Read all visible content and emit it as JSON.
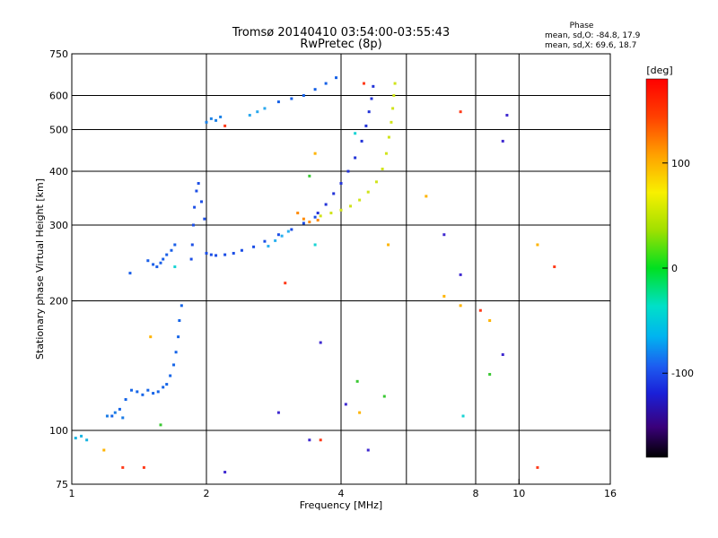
{
  "header": {
    "title_line1": "Tromsø 20140410 03:54:00-03:55:43",
    "title_line2": "RwPretec (8p)"
  },
  "phase_box": {
    "heading": "Phase",
    "line_o": "mean, sd,O: -84.8, 17.9",
    "line_x": "mean, sd,X: 69.6, 18.7"
  },
  "colorbar": {
    "unit": "[deg]",
    "range": [
      -180,
      180
    ],
    "ticks": [
      "100",
      "0",
      "-100"
    ],
    "tick_values": [
      100,
      0,
      -100
    ]
  },
  "chart_data": {
    "type": "scatter",
    "xlabel": "Frequency [MHz]",
    "ylabel": "Stationary phase Virtual Height [km]",
    "x_scale": "log",
    "y_scale": "log",
    "xlim": [
      1,
      16
    ],
    "ylim": [
      75,
      750
    ],
    "x_ticks": [
      "1",
      "2",
      "4",
      "8",
      "10",
      "16"
    ],
    "x_tick_values": [
      1,
      2,
      4,
      8,
      10,
      16
    ],
    "y_ticks": [
      "750",
      "600",
      "500",
      "400",
      "300",
      "200",
      "100",
      "75"
    ],
    "y_tick_values": [
      750,
      600,
      500,
      400,
      300,
      200,
      100,
      75
    ],
    "x_grid": [
      2,
      4,
      5.6,
      8,
      10
    ],
    "y_grid": [
      100,
      200,
      300,
      400,
      500,
      600
    ],
    "grid": true,
    "series": [
      {
        "color": "#1565e8",
        "x": [
          1.23,
          1.28,
          1.32,
          1.36,
          1.4,
          1.44,
          1.48,
          1.52,
          1.56,
          1.6,
          1.63,
          1.66,
          1.69,
          1.71,
          1.73,
          1.74,
          1.76
        ],
        "y": [
          108,
          112,
          118,
          124,
          123,
          121,
          124,
          122,
          123,
          126,
          128,
          134,
          142,
          152,
          165,
          180,
          195
        ]
      },
      {
        "color": "#1a7be6",
        "x": [
          1.2,
          1.25,
          1.3
        ],
        "y": [
          108,
          110,
          107
        ]
      },
      {
        "color": "#17b4e2",
        "x": [
          1.02,
          1.05,
          1.08
        ],
        "y": [
          96,
          97,
          95
        ]
      },
      {
        "color": "#1a5fe8",
        "x": [
          1.35,
          1.48,
          1.52,
          1.55,
          1.58,
          1.6,
          1.63,
          1.67,
          1.7
        ],
        "y": [
          232,
          248,
          243,
          240,
          245,
          250,
          256,
          262,
          270
        ]
      },
      {
        "color": "#1d4fe6",
        "x": [
          1.85,
          1.86,
          1.87,
          1.88,
          1.9,
          1.92,
          1.95,
          1.98
        ],
        "y": [
          250,
          270,
          300,
          330,
          360,
          375,
          340,
          310
        ]
      },
      {
        "color": "#1a4de6",
        "x": [
          2.0,
          2.05,
          2.1,
          2.2,
          2.3,
          2.4,
          2.55,
          2.7,
          2.9,
          3.1,
          3.3,
          3.5
        ],
        "y": [
          258,
          256,
          255,
          256,
          258,
          262,
          267,
          275,
          285,
          293,
          303,
          313
        ]
      },
      {
        "color": "#2ab0f0",
        "x": [
          2.75,
          2.85,
          2.95,
          3.05
        ],
        "y": [
          268,
          276,
          283,
          290
        ]
      },
      {
        "color": "#ff8a00",
        "x": [
          3.2,
          3.3,
          3.4,
          3.55
        ],
        "y": [
          320,
          310,
          305,
          308
        ]
      },
      {
        "color": "#2233d8",
        "x": [
          3.55,
          3.7,
          3.85,
          4.0,
          4.15,
          4.3,
          4.45,
          4.55,
          4.62,
          4.68,
          4.72
        ],
        "y": [
          320,
          335,
          355,
          375,
          400,
          430,
          470,
          510,
          550,
          590,
          630
        ]
      },
      {
        "color": "#d0e41a",
        "x": [
          3.6,
          3.8,
          4.0,
          4.2,
          4.4,
          4.6,
          4.8,
          4.95,
          5.05,
          5.12,
          5.18,
          5.22,
          5.25,
          5.28
        ],
        "y": [
          315,
          320,
          325,
          332,
          343,
          358,
          378,
          405,
          440,
          480,
          520,
          560,
          600,
          640
        ]
      },
      {
        "color": "#1a80e6",
        "x": [
          2.0,
          2.05,
          2.1,
          2.15
        ],
        "y": [
          520,
          530,
          525,
          535
        ]
      },
      {
        "color": "#2aa8ee",
        "x": [
          2.5,
          2.6,
          2.7
        ],
        "y": [
          540,
          550,
          560
        ]
      },
      {
        "color": "#1560e6",
        "x": [
          2.9,
          3.1,
          3.3,
          3.5,
          3.7,
          3.9
        ],
        "y": [
          580,
          590,
          600,
          620,
          640,
          660
        ]
      },
      {
        "color": "#3f2ad0",
        "x": [
          2.2,
          2.9,
          3.4,
          3.6,
          4.1,
          4.6,
          6.8,
          7.4,
          9.2,
          9.2,
          9.4
        ],
        "y": [
          80,
          110,
          95,
          160,
          115,
          90,
          285,
          230,
          150,
          470,
          540
        ]
      },
      {
        "color": "#ff3b1a",
        "x": [
          1.3,
          1.45,
          2.2,
          3.0,
          3.6,
          4.5,
          7.4,
          8.2,
          11.0,
          12.0
        ],
        "y": [
          82,
          82,
          510,
          220,
          95,
          640,
          550,
          190,
          82,
          240
        ]
      },
      {
        "color": "#ffb400",
        "x": [
          1.18,
          1.5,
          3.5,
          4.4,
          5.1,
          6.2,
          6.8,
          7.4,
          8.6,
          11.0
        ],
        "y": [
          90,
          165,
          440,
          110,
          270,
          350,
          205,
          195,
          180,
          270
        ]
      },
      {
        "color": "#39c832",
        "x": [
          1.58,
          3.4,
          4.35,
          5.0,
          8.6
        ],
        "y": [
          103,
          390,
          130,
          120,
          135
        ]
      },
      {
        "color": "#18d4d4",
        "x": [
          1.7,
          3.5,
          4.3,
          7.5
        ],
        "y": [
          240,
          270,
          490,
          108
        ]
      }
    ]
  }
}
